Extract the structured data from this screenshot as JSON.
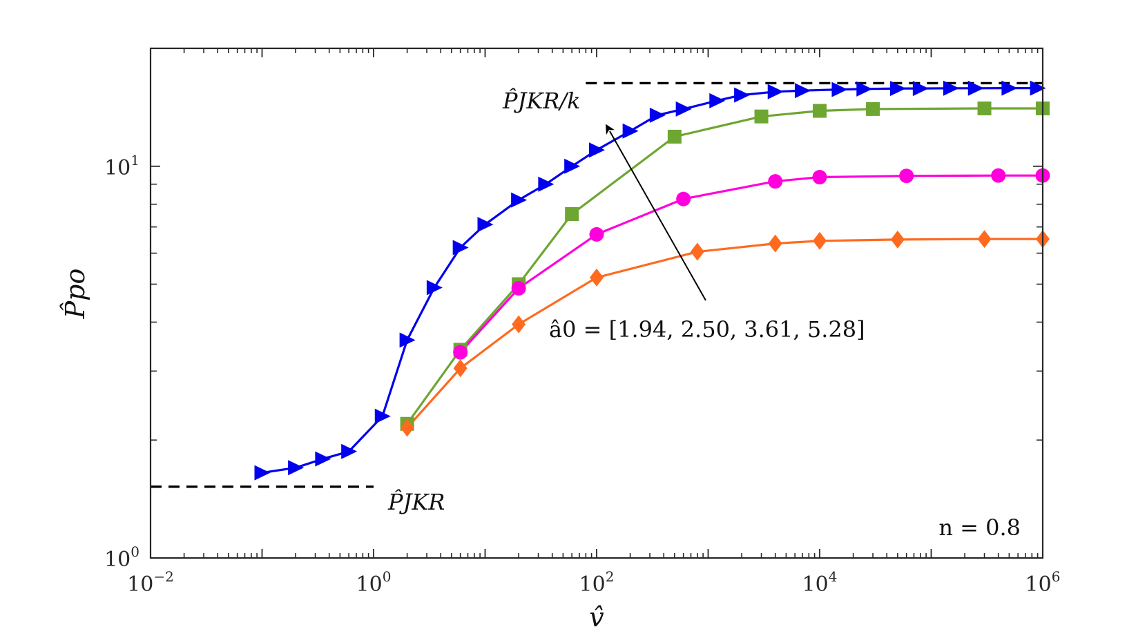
{
  "chart_data": {
    "type": "line",
    "title": "",
    "xlabel": "v̂",
    "ylabel": "P̂po",
    "xscale": "log",
    "yscale": "log",
    "xlim": [
      0.01,
      1000000
    ],
    "ylim": [
      1,
      20
    ],
    "xticks": [
      {
        "value": 0.01,
        "base": "10",
        "exp": "−2"
      },
      {
        "value": 1,
        "base": "10",
        "exp": "0"
      },
      {
        "value": 100,
        "base": "10",
        "exp": "2"
      },
      {
        "value": 10000,
        "base": "10",
        "exp": "4"
      },
      {
        "value": 1000000,
        "base": "10",
        "exp": "6"
      }
    ],
    "yticks": [
      {
        "value": 1,
        "base": "10",
        "exp": "0"
      },
      {
        "value": 10,
        "base": "10",
        "exp": "1"
      }
    ],
    "series": [
      {
        "name": "â0 = 1.94",
        "color": "#0000ee",
        "marker": "triangle-right",
        "x": [
          0.1,
          0.2,
          0.35,
          0.6,
          1.2,
          2.0,
          3.5,
          6.0,
          10,
          20,
          35,
          60,
          100,
          200,
          350,
          600,
          1200,
          2000,
          4000,
          7000,
          15000,
          25000,
          50000,
          80000,
          150000,
          250000,
          500000,
          900000
        ],
        "y": [
          1.65,
          1.7,
          1.79,
          1.87,
          2.3,
          3.6,
          4.9,
          6.2,
          7.1,
          8.2,
          9.0,
          10.0,
          11.0,
          12.3,
          13.5,
          14.0,
          14.7,
          15.2,
          15.5,
          15.6,
          15.7,
          15.75,
          15.8,
          15.8,
          15.82,
          15.82,
          15.83,
          15.83
        ]
      },
      {
        "name": "â0 = 2.50",
        "color": "#6ea632",
        "marker": "square",
        "x": [
          2.0,
          6.0,
          20,
          60,
          500,
          3000,
          10000,
          30000,
          300000,
          1000000
        ],
        "y": [
          2.2,
          3.4,
          5.0,
          7.55,
          11.9,
          13.4,
          13.85,
          14.0,
          14.05,
          14.05
        ]
      },
      {
        "name": "â0 = 3.61",
        "color": "#ff00dd",
        "marker": "circle",
        "x": [
          6.0,
          20,
          100,
          600,
          4000,
          10000,
          60000,
          400000,
          1000000
        ],
        "y": [
          3.35,
          4.88,
          6.7,
          8.25,
          9.15,
          9.38,
          9.45,
          9.47,
          9.47
        ]
      },
      {
        "name": "â0 = 5.28",
        "color": "#ff6a1f",
        "marker": "diamond",
        "x": [
          2.0,
          6.0,
          20,
          100,
          800,
          4000,
          10000,
          50000,
          300000,
          1000000
        ],
        "y": [
          2.15,
          3.05,
          3.95,
          5.2,
          6.05,
          6.35,
          6.45,
          6.5,
          6.52,
          6.52
        ]
      }
    ],
    "reference_lines": [
      {
        "label": "P̂JKR/k",
        "value": 16.3,
        "x_from": 80,
        "x_to": 1000000
      },
      {
        "label": "P̂JKR",
        "value": 1.52,
        "x_from": 0.01,
        "x_to": 1
      }
    ],
    "annotations": {
      "arrow_label": "â0 = [1.94, 2.50, 3.61, 5.28]",
      "n_label": "n = 0.8"
    }
  }
}
